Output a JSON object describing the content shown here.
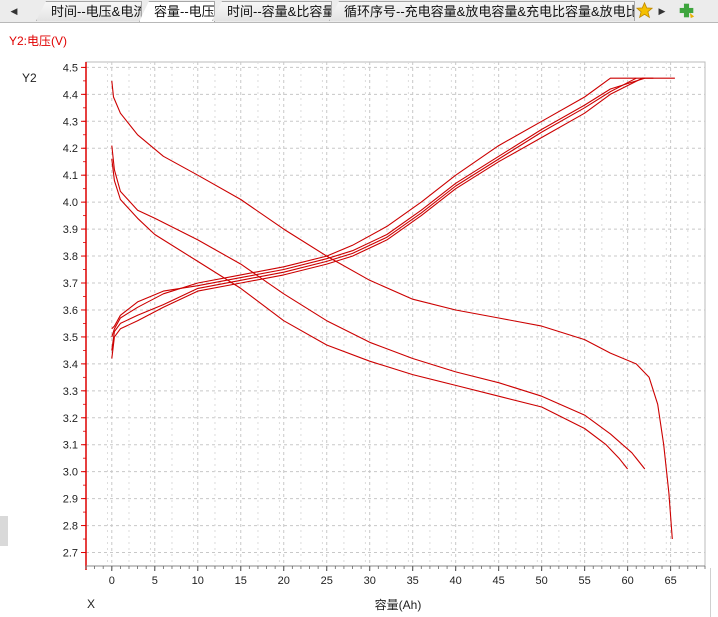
{
  "tabs": [
    {
      "label": "时间--电压&电流",
      "active": false
    },
    {
      "label": "容量--电压",
      "active": true
    },
    {
      "label": "时间--容量&比容量",
      "active": false
    },
    {
      "label": "循环序号--充电容量&放电容量&充电比容量&放电比容量",
      "active": false
    }
  ],
  "icons": {
    "left": "scroll-left-icon",
    "right": "scroll-right-icon",
    "star": "star-icon",
    "add": "add-tab-icon"
  },
  "chart_data": {
    "type": "line",
    "title": "",
    "y2_title": "Y2:电压(V)",
    "ylabel": "Y2",
    "xlabel_left": "X",
    "xlabel": "容量(Ah)",
    "xlim": [
      -3,
      69
    ],
    "ylim": [
      2.65,
      4.52
    ],
    "xticks": [
      0,
      5,
      10,
      15,
      20,
      25,
      30,
      35,
      40,
      45,
      50,
      55,
      60,
      65
    ],
    "yticks": [
      2.7,
      2.8,
      2.9,
      3.0,
      3.1,
      3.2,
      3.3,
      3.4,
      3.5,
      3.6,
      3.7,
      3.8,
      3.9,
      4.0,
      4.1,
      4.2,
      4.3,
      4.4,
      4.5
    ],
    "grid": true,
    "line_color": "#cc0000",
    "series": [
      {
        "points": [
          [
            0,
            3.42
          ],
          [
            0.3,
            3.5
          ],
          [
            1,
            3.53
          ],
          [
            3,
            3.56
          ],
          [
            6,
            3.61
          ],
          [
            10,
            3.67
          ],
          [
            15,
            3.7
          ],
          [
            20,
            3.73
          ],
          [
            25,
            3.77
          ],
          [
            28,
            3.8
          ],
          [
            32,
            3.86
          ],
          [
            36,
            3.95
          ],
          [
            40,
            4.05
          ],
          [
            45,
            4.15
          ],
          [
            50,
            4.24
          ],
          [
            55,
            4.33
          ],
          [
            58,
            4.4
          ],
          [
            61.7,
            4.46
          ],
          [
            65.5,
            4.46
          ]
        ]
      },
      {
        "points": [
          [
            0,
            3.45
          ],
          [
            0.3,
            3.52
          ],
          [
            1,
            3.55
          ],
          [
            3,
            3.58
          ],
          [
            6,
            3.62
          ],
          [
            10,
            3.68
          ],
          [
            15,
            3.71
          ],
          [
            20,
            3.74
          ],
          [
            25,
            3.78
          ],
          [
            28,
            3.81
          ],
          [
            32,
            3.87
          ],
          [
            36,
            3.96
          ],
          [
            40,
            4.06
          ],
          [
            45,
            4.16
          ],
          [
            50,
            4.26
          ],
          [
            55,
            4.35
          ],
          [
            58,
            4.41
          ],
          [
            61,
            4.46
          ]
        ]
      },
      {
        "points": [
          [
            0,
            3.5
          ],
          [
            0.3,
            3.53
          ],
          [
            1,
            3.57
          ],
          [
            3,
            3.61
          ],
          [
            6,
            3.66
          ],
          [
            10,
            3.7
          ],
          [
            15,
            3.73
          ],
          [
            20,
            3.76
          ],
          [
            25,
            3.8
          ],
          [
            28,
            3.84
          ],
          [
            32,
            3.91
          ],
          [
            36,
            4.0
          ],
          [
            40,
            4.1
          ],
          [
            45,
            4.21
          ],
          [
            50,
            4.3
          ],
          [
            55,
            4.39
          ],
          [
            58,
            4.46
          ],
          [
            63,
            4.46
          ]
        ]
      },
      {
        "points": [
          [
            0,
            3.53
          ],
          [
            0.3,
            3.54
          ],
          [
            1,
            3.58
          ],
          [
            3,
            3.63
          ],
          [
            6,
            3.67
          ],
          [
            10,
            3.69
          ],
          [
            15,
            3.72
          ],
          [
            20,
            3.75
          ],
          [
            25,
            3.79
          ],
          [
            28,
            3.82
          ],
          [
            32,
            3.88
          ],
          [
            36,
            3.97
          ],
          [
            40,
            4.07
          ],
          [
            45,
            4.17
          ],
          [
            50,
            4.27
          ],
          [
            55,
            4.36
          ],
          [
            58,
            4.42
          ],
          [
            62,
            4.46
          ]
        ]
      },
      {
        "points": [
          [
            0,
            4.45
          ],
          [
            0.2,
            4.39
          ],
          [
            1,
            4.33
          ],
          [
            3,
            4.25
          ],
          [
            6,
            4.17
          ],
          [
            10,
            4.1
          ],
          [
            15,
            4.01
          ],
          [
            20,
            3.9
          ],
          [
            25,
            3.8
          ],
          [
            30,
            3.71
          ],
          [
            35,
            3.64
          ],
          [
            40,
            3.6
          ],
          [
            45,
            3.57
          ],
          [
            50,
            3.54
          ],
          [
            55,
            3.49
          ],
          [
            58,
            3.44
          ],
          [
            61,
            3.4
          ],
          [
            62.5,
            3.35
          ],
          [
            63.5,
            3.25
          ],
          [
            64.2,
            3.1
          ],
          [
            64.8,
            2.92
          ],
          [
            65.2,
            2.75
          ]
        ]
      },
      {
        "points": [
          [
            0,
            4.21
          ],
          [
            0.3,
            4.12
          ],
          [
            1,
            4.04
          ],
          [
            3,
            3.97
          ],
          [
            5,
            3.94
          ],
          [
            10,
            3.86
          ],
          [
            15,
            3.77
          ],
          [
            20,
            3.66
          ],
          [
            25,
            3.56
          ],
          [
            30,
            3.48
          ],
          [
            35,
            3.42
          ],
          [
            40,
            3.37
          ],
          [
            45,
            3.33
          ],
          [
            50,
            3.28
          ],
          [
            55,
            3.21
          ],
          [
            58,
            3.14
          ],
          [
            60.5,
            3.07
          ],
          [
            62,
            3.01
          ]
        ]
      },
      {
        "points": [
          [
            0,
            4.16
          ],
          [
            0.3,
            4.08
          ],
          [
            1,
            4.01
          ],
          [
            3,
            3.94
          ],
          [
            5,
            3.88
          ],
          [
            10,
            3.78
          ],
          [
            15,
            3.68
          ],
          [
            20,
            3.56
          ],
          [
            25,
            3.47
          ],
          [
            30,
            3.41
          ],
          [
            35,
            3.36
          ],
          [
            40,
            3.32
          ],
          [
            45,
            3.28
          ],
          [
            50,
            3.24
          ],
          [
            55,
            3.16
          ],
          [
            57.5,
            3.1
          ],
          [
            59,
            3.05
          ],
          [
            60,
            3.01
          ]
        ]
      }
    ]
  }
}
